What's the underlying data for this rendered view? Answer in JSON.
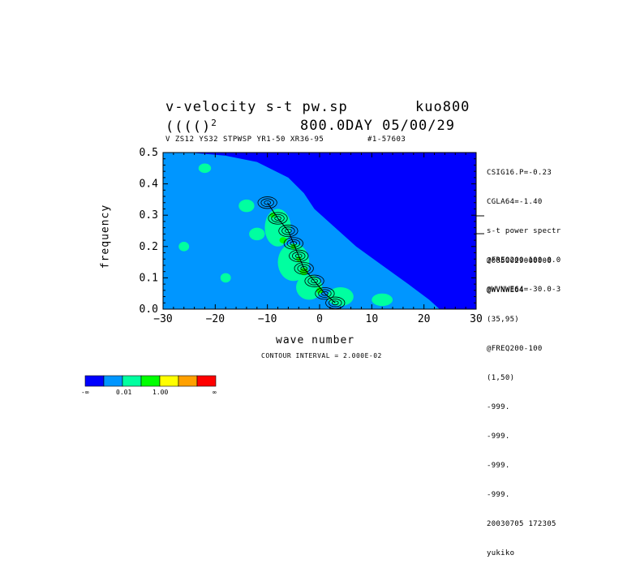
{
  "header": {
    "title_line1_left": "v-velocity s-t pw.sp",
    "title_line1_right": "kuo800",
    "title_line2_left": "(((()",
    "title_line2_sup": "2",
    "title_line2_right": "800.0DAY 05/00/29",
    "subtitle": "V ZS12 YS32 STPWSP YR1-50 XR36-95",
    "subtitle_id": "#1-57603"
  },
  "side_info": {
    "top": [
      "CSIG16.P=-0.23",
      "CGLA64=-1.40",
      "s-t power spectr",
      "@FREQ200-100-0.0",
      "@WVNWE64=-30.0-3"
    ],
    "bottom": [
      "20050029000000",
      "@WVNWE64",
      "(35,95)",
      "@FREQ200-100",
      "(1,50)",
      "-999.",
      "-999.",
      "-999.",
      "-999.",
      "20030705 172305",
      "yukiko"
    ]
  },
  "footer": {
    "contour_interval": "CONTOUR INTERVAL = 2.000E-02"
  },
  "colorbar": {
    "colors": [
      "#0000ff",
      "#0096ff",
      "#00ffa0",
      "#00ff00",
      "#ffff00",
      "#ffa000",
      "#ff0000"
    ],
    "labels": [
      "-∞",
      "0.01",
      "1.00",
      "∞"
    ]
  },
  "chart_data": {
    "type": "contour",
    "xlabel": "wave number",
    "ylabel": "frequency",
    "xlim": [
      -30,
      30
    ],
    "ylim": [
      0.0,
      0.5
    ],
    "x_ticks": [
      -30,
      -20,
      -10,
      0,
      10,
      20,
      30
    ],
    "x_tick_labels": [
      "−30",
      "−20",
      "−10",
      "0",
      "10",
      "20",
      "30"
    ],
    "y_ticks": [
      0.0,
      0.1,
      0.2,
      0.3,
      0.4,
      0.5
    ],
    "y_tick_labels": [
      "0.0",
      "0.1",
      "0.2",
      "0.3",
      "0.4",
      "0.5"
    ],
    "contour_interval": 0.02,
    "shade_levels": [
      0.01,
      1.0
    ],
    "region_boundary_light_blue": [
      [
        -30,
        0.5
      ],
      [
        -25,
        0.5
      ],
      [
        -18,
        0.49
      ],
      [
        -12,
        0.47
      ],
      [
        -6,
        0.42
      ],
      [
        -3,
        0.37
      ],
      [
        -1,
        0.32
      ],
      [
        3,
        0.26
      ],
      [
        7,
        0.2
      ],
      [
        12,
        0.14
      ],
      [
        17,
        0.08
      ],
      [
        21,
        0.03
      ],
      [
        23,
        0.0
      ],
      [
        -30,
        0.0
      ]
    ],
    "cyan_patches": [
      {
        "x": -8,
        "y": 0.26,
        "rx": 2.5,
        "ry": 0.06
      },
      {
        "x": -5,
        "y": 0.15,
        "rx": 3.0,
        "ry": 0.06
      },
      {
        "x": -2,
        "y": 0.07,
        "rx": 2.5,
        "ry": 0.04
      },
      {
        "x": -14,
        "y": 0.33,
        "rx": 1.5,
        "ry": 0.02
      },
      {
        "x": -22,
        "y": 0.45,
        "rx": 1.2,
        "ry": 0.015
      },
      {
        "x": -12,
        "y": 0.24,
        "rx": 1.5,
        "ry": 0.02
      },
      {
        "x": 4,
        "y": 0.04,
        "rx": 2.5,
        "ry": 0.03
      },
      {
        "x": -26,
        "y": 0.2,
        "rx": 1.0,
        "ry": 0.015
      },
      {
        "x": -18,
        "y": 0.1,
        "rx": 1.0,
        "ry": 0.015
      },
      {
        "x": 12,
        "y": 0.03,
        "rx": 2.0,
        "ry": 0.02
      }
    ],
    "green_patches": [
      {
        "x": -7,
        "y": 0.22,
        "rx": 0.7,
        "ry": 0.01
      },
      {
        "x": -3,
        "y": 0.12,
        "rx": 0.8,
        "ry": 0.012
      },
      {
        "x": -9,
        "y": 0.3,
        "rx": 0.5,
        "ry": 0.008
      },
      {
        "x": -5,
        "y": 0.2,
        "rx": 0.5,
        "ry": 0.008
      },
      {
        "x": 0,
        "y": 0.06,
        "rx": 0.6,
        "ry": 0.01
      },
      {
        "x": -4,
        "y": 0.16,
        "rx": 0.5,
        "ry": 0.008
      }
    ],
    "contour_ridge": [
      [
        -10,
        0.34
      ],
      [
        -8,
        0.29
      ],
      [
        -6,
        0.25
      ],
      [
        -5,
        0.21
      ],
      [
        -4,
        0.17
      ],
      [
        -3,
        0.13
      ],
      [
        -1,
        0.09
      ],
      [
        1,
        0.05
      ],
      [
        3,
        0.02
      ]
    ]
  }
}
